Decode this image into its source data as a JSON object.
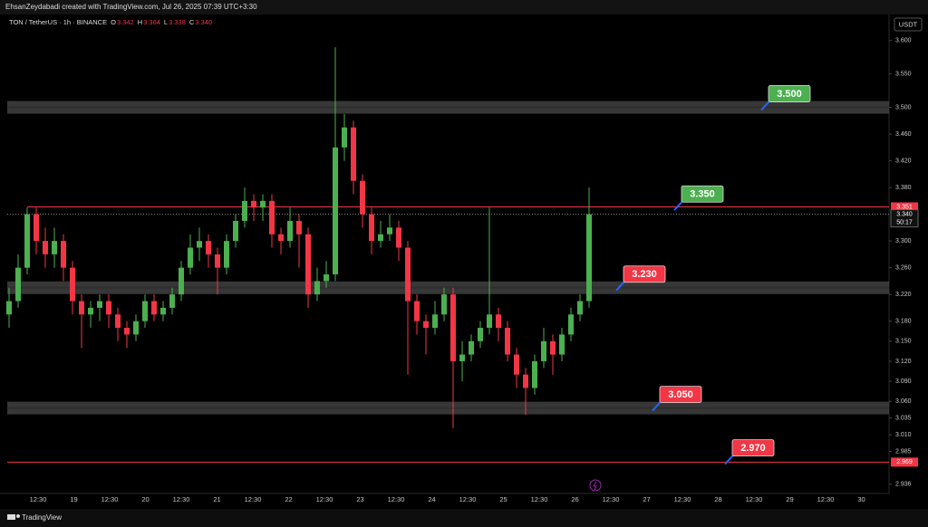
{
  "chart_data": {
    "type": "candlestick",
    "header": "EhsanZeydabadi created with TradingView.com, Jul 26, 2025 07:39 UTC+3:30",
    "symbol": "TON / TetherUS · 1h · BINANCE",
    "ohlc_legend": [
      {
        "key": "O",
        "value": 3.342,
        "label": "3.342"
      },
      {
        "key": "H",
        "value": 3.364,
        "label": "3.364"
      },
      {
        "key": "L",
        "value": 3.338,
        "label": "3.338"
      },
      {
        "key": "C",
        "value": 3.34,
        "label": "3.340"
      }
    ],
    "currency": "USDT",
    "brand": "TradingView",
    "up_color": "#4caf50",
    "down_color": "#f23645",
    "open": [
      3.19,
      3.21,
      3.26,
      3.34,
      3.3,
      3.28,
      3.3,
      3.26,
      3.21,
      3.19,
      3.2,
      3.21,
      3.19,
      3.17,
      3.16,
      3.18,
      3.21,
      3.19,
      3.2,
      3.22,
      3.26,
      3.29,
      3.3,
      3.28,
      3.26,
      3.3,
      3.33,
      3.36,
      3.35,
      3.36,
      3.31,
      3.3,
      3.33,
      3.31,
      3.22,
      3.24,
      3.25,
      3.44,
      3.47,
      3.39,
      3.34,
      3.3,
      3.31,
      3.32,
      3.29,
      3.21,
      3.18,
      3.17,
      3.19,
      3.22,
      3.12,
      3.13,
      3.15,
      3.17,
      3.19,
      3.17,
      3.13,
      3.1,
      3.08,
      3.12,
      3.15,
      3.13,
      3.16,
      3.19,
      3.21
    ],
    "high": [
      3.23,
      3.28,
      3.35,
      3.35,
      3.32,
      3.32,
      3.31,
      3.27,
      3.22,
      3.21,
      3.22,
      3.22,
      3.2,
      3.18,
      3.19,
      3.22,
      3.22,
      3.21,
      3.23,
      3.27,
      3.31,
      3.32,
      3.31,
      3.29,
      3.31,
      3.34,
      3.38,
      3.37,
      3.37,
      3.37,
      3.32,
      3.35,
      3.34,
      3.32,
      3.26,
      3.27,
      3.59,
      3.49,
      3.48,
      3.4,
      3.35,
      3.33,
      3.34,
      3.33,
      3.3,
      3.22,
      3.19,
      3.21,
      3.23,
      3.23,
      3.15,
      3.16,
      3.18,
      3.35,
      3.2,
      3.18,
      3.14,
      3.11,
      3.13,
      3.17,
      3.16,
      3.17,
      3.2,
      3.22,
      3.38
    ],
    "low": [
      3.17,
      3.2,
      3.25,
      3.28,
      3.26,
      3.26,
      3.24,
      3.19,
      3.14,
      3.17,
      3.18,
      3.17,
      3.15,
      3.14,
      3.15,
      3.17,
      3.18,
      3.18,
      3.19,
      3.21,
      3.25,
      3.27,
      3.26,
      3.22,
      3.25,
      3.29,
      3.32,
      3.33,
      3.33,
      3.29,
      3.28,
      3.29,
      3.26,
      3.2,
      3.21,
      3.23,
      3.24,
      3.42,
      3.37,
      3.32,
      3.28,
      3.29,
      3.3,
      3.27,
      3.1,
      3.16,
      3.13,
      3.16,
      3.18,
      3.02,
      3.09,
      3.12,
      3.14,
      3.16,
      3.15,
      3.12,
      3.08,
      3.04,
      3.07,
      3.11,
      3.1,
      3.12,
      3.15,
      3.18,
      3.2
    ],
    "close": [
      3.21,
      3.26,
      3.34,
      3.3,
      3.28,
      3.3,
      3.26,
      3.21,
      3.19,
      3.2,
      3.21,
      3.19,
      3.17,
      3.16,
      3.18,
      3.21,
      3.19,
      3.2,
      3.22,
      3.26,
      3.29,
      3.3,
      3.28,
      3.26,
      3.3,
      3.33,
      3.36,
      3.35,
      3.36,
      3.31,
      3.3,
      3.33,
      3.31,
      3.22,
      3.24,
      3.25,
      3.44,
      3.47,
      3.39,
      3.34,
      3.3,
      3.31,
      3.32,
      3.29,
      3.21,
      3.18,
      3.17,
      3.19,
      3.22,
      3.12,
      3.13,
      3.15,
      3.17,
      3.19,
      3.17,
      3.13,
      3.1,
      3.08,
      3.12,
      3.15,
      3.13,
      3.16,
      3.19,
      3.21,
      3.34
    ],
    "x_labels": [
      "12:30",
      "19",
      "12:30",
      "20",
      "12:30",
      "21",
      "12:30",
      "22",
      "12:30",
      "23",
      "12:30",
      "24",
      "12:30",
      "25",
      "12:30",
      "26",
      "12:30",
      "27",
      "12:30",
      "28",
      "12:30",
      "29",
      "12:30",
      "30"
    ],
    "ylim": [
      2.918,
      3.62
    ],
    "yticks": [
      {
        "value": 3.6,
        "label": "3.600"
      },
      {
        "value": 3.55,
        "label": "3.550"
      },
      {
        "value": 3.5,
        "label": "3.500"
      },
      {
        "value": 3.46,
        "label": "3.460"
      },
      {
        "value": 3.42,
        "label": "3.420"
      },
      {
        "value": 3.38,
        "label": "3.380"
      },
      {
        "value": 3.3,
        "label": "3.300"
      },
      {
        "value": 3.26,
        "label": "3.260"
      },
      {
        "value": 3.22,
        "label": "3.220"
      },
      {
        "value": 3.18,
        "label": "3.180"
      },
      {
        "value": 3.15,
        "label": "3.150"
      },
      {
        "value": 3.12,
        "label": "3.120"
      },
      {
        "value": 3.09,
        "label": "3.090"
      },
      {
        "value": 3.06,
        "label": "3.060"
      },
      {
        "value": 3.035,
        "label": "3.035"
      },
      {
        "value": 3.01,
        "label": "3.010"
      },
      {
        "value": 2.985,
        "label": "2.985"
      },
      {
        "value": 2.936,
        "label": "2.936"
      }
    ],
    "zones": [
      3.5,
      3.23,
      3.05
    ],
    "price_lines": [
      {
        "value": 3.351,
        "label": "3.351"
      },
      {
        "value": 2.969,
        "label": "2.969"
      }
    ],
    "last_price": {
      "value": 3.34,
      "label": "3.340",
      "countdown": "50:17"
    },
    "annotations": [
      {
        "value": 3.5,
        "label": "3.500",
        "color": "#4caf50"
      },
      {
        "value": 3.35,
        "label": "3.350",
        "color": "#4caf50"
      },
      {
        "value": 3.23,
        "label": "3.230",
        "color": "#f23645"
      },
      {
        "value": 3.05,
        "label": "3.050",
        "color": "#f23645"
      },
      {
        "value": 2.97,
        "label": "2.970",
        "color": "#f23645"
      }
    ]
  }
}
